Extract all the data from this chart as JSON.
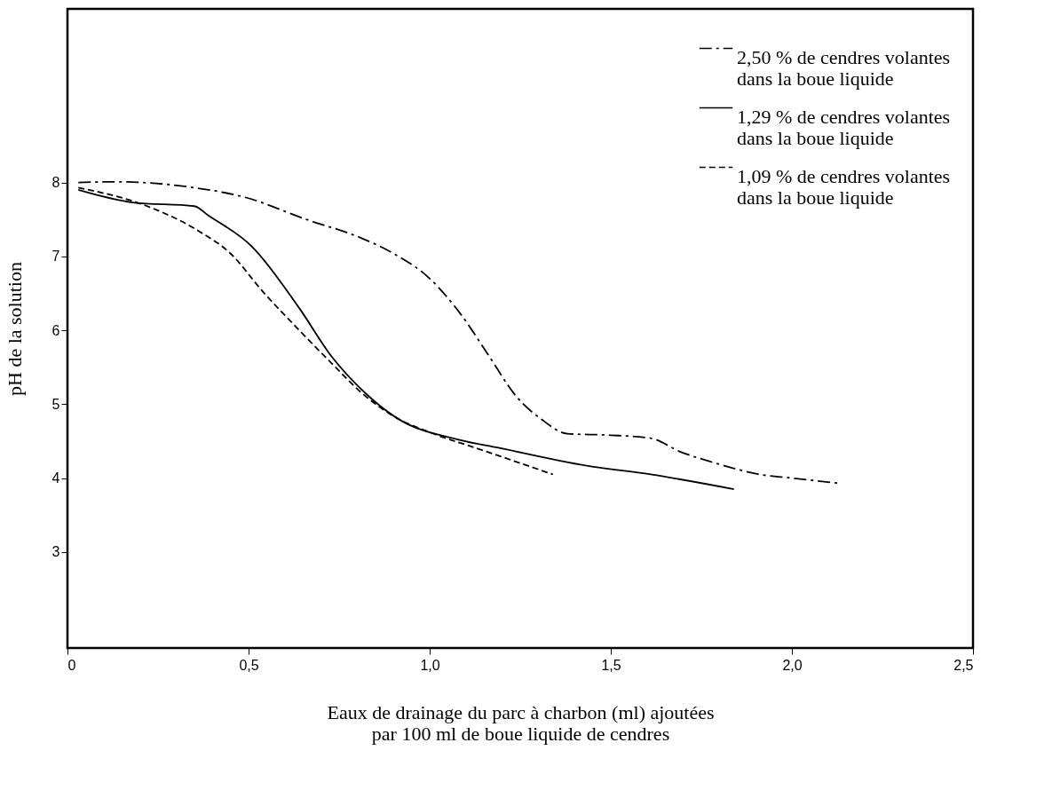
{
  "chart_data": {
    "type": "line",
    "xlabel": "Eaux de drainage du parc à charbon (ml) ajoutées\npar 100 ml de boue liquide de cendres",
    "ylabel": "pH de la solution",
    "xlim": [
      0,
      2.5
    ],
    "ylim": [
      1.7,
      10.35
    ],
    "xticks": [
      {
        "value": 0,
        "label": "0"
      },
      {
        "value": 0.5,
        "label": "0,5"
      },
      {
        "value": 1.0,
        "label": "1,0"
      },
      {
        "value": 1.5,
        "label": "1,5"
      },
      {
        "value": 2.0,
        "label": "2,0"
      },
      {
        "value": 2.5,
        "label": "2,5"
      }
    ],
    "yticks": [
      3,
      4,
      5,
      6,
      7,
      8
    ],
    "grid": false,
    "legend": "top right",
    "marker": "none",
    "series": [
      {
        "name": "2,50 % de cendres volantes\ndans la boue liquide",
        "color": "#000000",
        "line_style": "dashdot",
        "x": [
          0.03,
          0.13,
          0.35,
          0.49,
          0.66,
          0.81,
          0.9,
          1.0,
          1.09,
          1.16,
          1.24,
          1.31,
          1.38,
          1.5,
          1.61,
          1.69,
          1.79,
          1.91,
          2.0,
          2.13
        ],
        "values": [
          8.0,
          8.01,
          7.93,
          7.8,
          7.5,
          7.25,
          7.04,
          6.7,
          6.19,
          5.68,
          5.1,
          4.79,
          4.6,
          4.58,
          4.54,
          4.36,
          4.2,
          4.05,
          4.0,
          3.93
        ]
      },
      {
        "name": "1,29 % de cendres volantes\ndans la boue liquide",
        "color": "#000000",
        "line_style": "solid",
        "x": [
          0.03,
          0.18,
          0.35,
          0.39,
          0.51,
          0.64,
          0.73,
          0.82,
          0.91,
          1.08,
          1.19,
          1.43,
          1.61,
          1.84
        ],
        "values": [
          7.9,
          7.73,
          7.68,
          7.55,
          7.13,
          6.3,
          5.64,
          5.16,
          4.81,
          4.52,
          4.41,
          4.17,
          4.05,
          3.85
        ]
      },
      {
        "name": "1,09 % de cendres volantes\ndans la boue liquide",
        "color": "#000000",
        "line_style": "dashed",
        "x": [
          0.03,
          0.22,
          0.36,
          0.45,
          0.54,
          0.64,
          0.73,
          0.82,
          0.91,
          1.0,
          1.15,
          1.34
        ],
        "values": [
          7.93,
          7.68,
          7.35,
          7.04,
          6.52,
          6.0,
          5.55,
          5.12,
          4.81,
          4.62,
          4.37,
          4.05
        ]
      }
    ]
  }
}
